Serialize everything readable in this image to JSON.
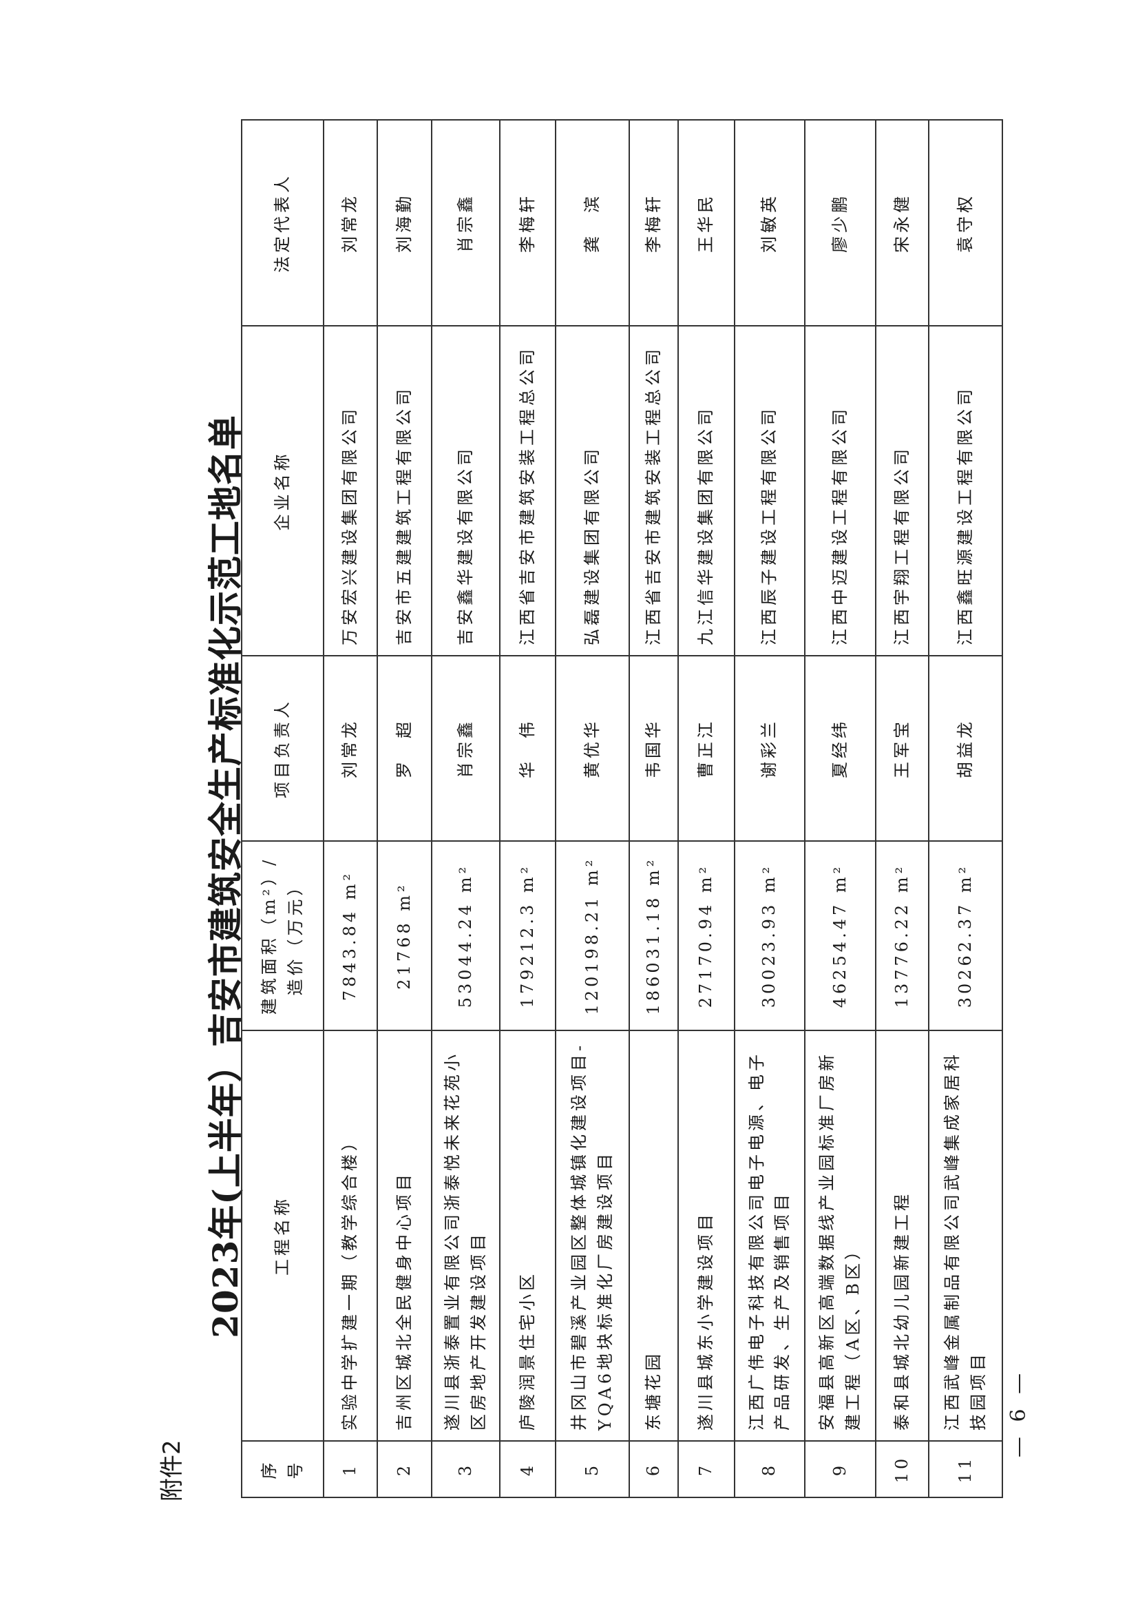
{
  "attachment_label": "附件2",
  "title": "2023年(上半年）吉安市建筑安全生产标准化示范工地名单",
  "headers": {
    "index": "序号",
    "project_name": "工程名称",
    "area_line1": "建筑面积（m²）/",
    "area_line2": "造价（万元）",
    "project_manager": "项目负责人",
    "company": "企业名称",
    "legal_rep": "法定代表人"
  },
  "rows": [
    {
      "index": "1",
      "project": "实验中学扩建一期（教学综合楼）",
      "area": "7843.84 m²",
      "manager": "刘常龙",
      "company": "万安宏兴建设集团有限公司",
      "legal": "刘常龙"
    },
    {
      "index": "2",
      "project": "吉州区城北全民健身中心项目",
      "area": "21768 m²",
      "manager": "罗　超",
      "company": "吉安市五建建筑工程有限公司",
      "legal": "刘海勤"
    },
    {
      "index": "3",
      "project": "遂川县浙泰置业有限公司浙泰悦未来花苑小区房地产开发建设项目",
      "area": "53044.24 m²",
      "manager": "肖宗鑫",
      "company": "吉安鑫华建设有限公司",
      "legal": "肖宗鑫"
    },
    {
      "index": "4",
      "project": "庐陵润景住宅小区",
      "area": "179212.3 m²",
      "manager": "华　伟",
      "company": "江西省吉安市建筑安装工程总公司",
      "legal": "李梅轩"
    },
    {
      "index": "5",
      "project": "井冈山市碧溪产业园区整体城镇化建设项目-YQA6地块标准化厂房建设项目",
      "area": "120198.21 m²",
      "manager": "黄优华",
      "company": "弘磊建设集团有限公司",
      "legal": "龚　滨"
    },
    {
      "index": "6",
      "project": "东塘花园",
      "area": "186031.18 m²",
      "manager": "韦国华",
      "company": "江西省吉安市建筑安装工程总公司",
      "legal": "李梅轩"
    },
    {
      "index": "7",
      "project": "遂川县城东小学建设项目",
      "area": "27170.94 m²",
      "manager": "曹正江",
      "company": "九江信华建设集团有限公司",
      "legal": "王华民"
    },
    {
      "index": "8",
      "project": "江西广伟电子科技有限公司电子电源、电子产品研发、生产及销售项目",
      "area": "30023.93 m²",
      "manager": "谢彩兰",
      "company": "江西辰子建设工程有限公司",
      "legal": "刘敏英"
    },
    {
      "index": "9",
      "project": "安福县高新区高端数据线产业园标准厂房新建工程（A区、B区）",
      "area": "46254.47 m²",
      "manager": "夏经纬",
      "company": "江西中迈建设工程有限公司",
      "legal": "廖少鹏"
    },
    {
      "index": "10",
      "project": "泰和县城北幼儿园新建工程",
      "area": "13776.22 m²",
      "manager": "王军宝",
      "company": "江西宇翔工程有限公司",
      "legal": "宋永健"
    },
    {
      "index": "11",
      "project": "江西武峰金属制品有限公司武峰集成家居科技园项目",
      "area": "30262.37 m²",
      "manager": "胡益龙",
      "company": "江西鑫旺源建设工程有限公司",
      "legal": "袁守权"
    }
  ],
  "page_number": "— 6 —"
}
